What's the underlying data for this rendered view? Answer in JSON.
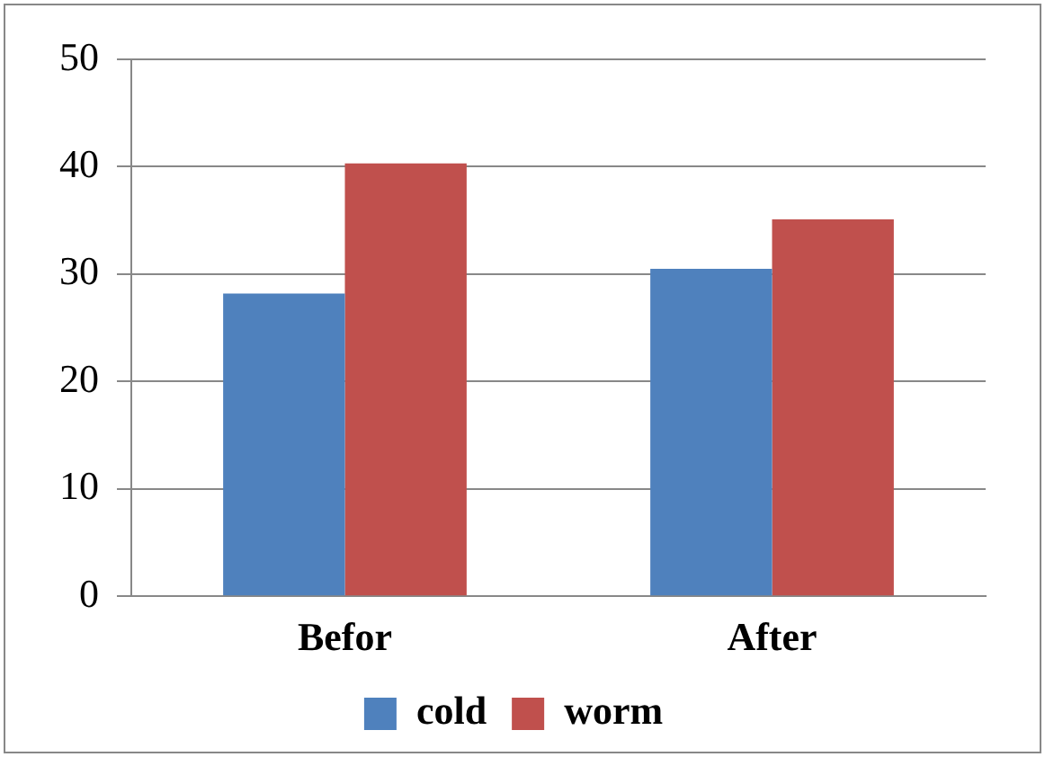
{
  "chart_data": {
    "type": "bar",
    "categories": [
      "Befor",
      "After"
    ],
    "series": [
      {
        "name": "cold",
        "color": "#4f81bd",
        "values": [
          28.2,
          30.5
        ]
      },
      {
        "name": "worm",
        "color": "#c0504d",
        "values": [
          40.3,
          35.1
        ]
      }
    ],
    "ylim": [
      0,
      50
    ],
    "yticks": [
      0,
      10,
      20,
      30,
      40,
      50
    ],
    "grid": "y",
    "legend": "bottom"
  }
}
